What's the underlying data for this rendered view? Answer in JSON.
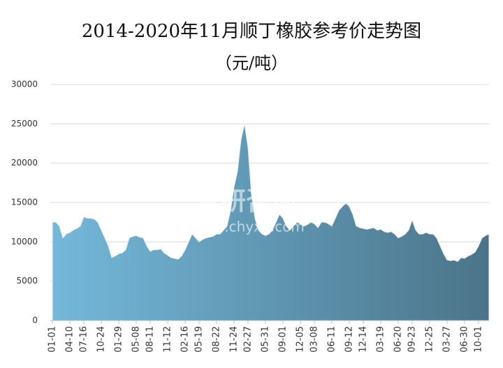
{
  "chart_data": {
    "type": "area",
    "title": "2014-2020年11月顺丁橡胶参考价走势图",
    "subtitle": "（元/吨）",
    "watermark": [
      "智研咨询",
      "www.chyxx.com"
    ],
    "categories": [
      "01-01",
      null,
      null,
      null,
      null,
      "04-10",
      null,
      null,
      null,
      "07-16",
      null,
      null,
      null,
      null,
      "10-24",
      null,
      null,
      null,
      null,
      "01-29",
      null,
      null,
      null,
      null,
      "05-08",
      null,
      null,
      null,
      "08-11",
      null,
      null,
      null,
      null,
      "11-12",
      null,
      null,
      null,
      null,
      "02-16",
      null,
      null,
      null,
      "05-19",
      null,
      null,
      null,
      null,
      "08-22",
      null,
      null,
      null,
      null,
      "11-24",
      null,
      null,
      null,
      "02-27",
      null,
      null,
      null,
      null,
      "05-31",
      null,
      null,
      null,
      null,
      "09-01",
      null,
      null,
      null,
      null,
      "12-05",
      null,
      null,
      null,
      "03-08",
      null,
      null,
      null,
      null,
      "06-11",
      null,
      null,
      null,
      null,
      "09-12",
      null,
      null,
      null,
      "12-14",
      null,
      null,
      null,
      null,
      "03-19",
      null,
      null,
      null,
      null,
      "06-20",
      null,
      null,
      null,
      "09-23",
      null,
      null,
      null,
      null,
      "12-25",
      null,
      null,
      null,
      null,
      "03-27",
      null,
      null,
      null,
      null,
      "06-30",
      null,
      null,
      null,
      "10-01",
      null,
      null,
      null
    ],
    "values": [
      12500,
      12500,
      12000,
      10500,
      11000,
      11200,
      11500,
      11700,
      12000,
      13200,
      13000,
      13000,
      12900,
      12500,
      11500,
      10500,
      9500,
      8000,
      8200,
      8500,
      8600,
      9000,
      10500,
      10700,
      10800,
      10600,
      10500,
      9500,
      8800,
      9000,
      9000,
      9100,
      8600,
      8300,
      8000,
      7900,
      7800,
      8200,
      9000,
      10000,
      11000,
      10500,
      10000,
      10300,
      10500,
      10600,
      10700,
      11000,
      11000,
      11500,
      12000,
      14000,
      17000,
      19000,
      23000,
      25000,
      22000,
      16000,
      13000,
      11500,
      11000,
      10800,
      11000,
      11500,
      12500,
      13500,
      13000,
      12000,
      11500,
      12000,
      12500,
      12300,
      12000,
      12200,
      12500,
      12300,
      11800,
      12500,
      12500,
      12300,
      12000,
      13000,
      14000,
      14500,
      14900,
      14500,
      13500,
      12000,
      11800,
      11700,
      11600,
      11700,
      11800,
      11500,
      11600,
      11300,
      11200,
      11300,
      11000,
      10500,
      10700,
      11000,
      11500,
      12800,
      11500,
      11000,
      11000,
      11200,
      11000,
      11000,
      10500,
      9500,
      8500,
      7700,
      7600,
      7700,
      7500,
      8000,
      7900,
      8200,
      8400,
      8700,
      9500,
      10500,
      10800,
      11000
    ],
    "color_start": "#74b8da",
    "color_end": "#4b7489",
    "ylim": [
      0,
      30000
    ],
    "yticks": [
      0,
      5000,
      10000,
      15000,
      20000,
      25000,
      30000
    ],
    "grid": true
  }
}
